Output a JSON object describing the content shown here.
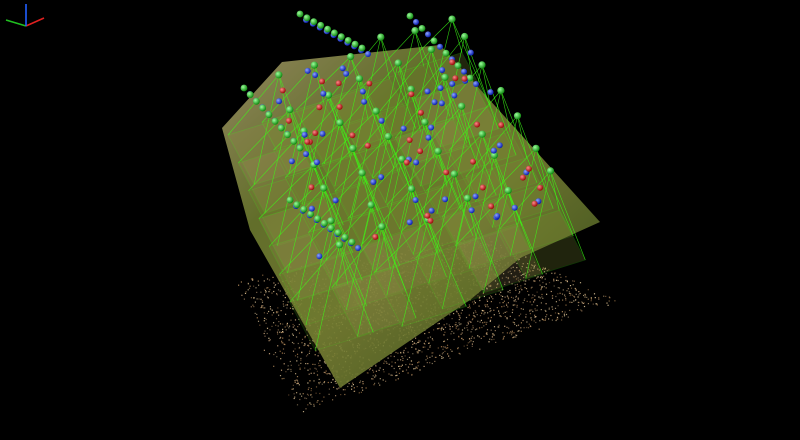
{
  "viewport": {
    "background": "#000000",
    "camera_frustum_color": "#39ff14",
    "camera_center_color": "#22dd22",
    "ground_control_point_color": "#1f3fff",
    "check_point_color": "#e01818",
    "orthophoto_palette": [
      "#6f7a2c",
      "#8a8a3a",
      "#a07a48",
      "#5d6e2a",
      "#9c9060",
      "#b08a5a"
    ],
    "point_cloud_palette": [
      "#caa37a",
      "#b8905f",
      "#e0c89a",
      "#a67a4a",
      "#d6b98a"
    ]
  },
  "axis_gizmo": {
    "x_axis_color": "#e02020",
    "y_axis_color": "#20c020",
    "z_axis_color": "#2060ff"
  }
}
